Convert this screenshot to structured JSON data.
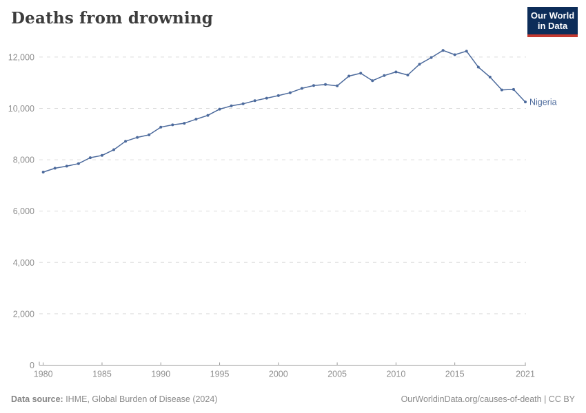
{
  "header": {
    "title": "Deaths from drowning"
  },
  "logo": {
    "line1": "Our World",
    "line2": "in Data",
    "bg_color": "#0d2d59",
    "accent_color": "#c4392f"
  },
  "chart_data": {
    "type": "line",
    "title": "Deaths from drowning",
    "entity_label": "Nigeria",
    "line_color": "#4C6A9C",
    "grid": "horizontal dashed",
    "legend_position": "end-of-line label",
    "xlabel": "",
    "ylabel": "",
    "ylim": [
      0,
      12000
    ],
    "yticks": [
      0,
      2000,
      4000,
      6000,
      8000,
      10000,
      12000
    ],
    "xticks": [
      1980,
      1985,
      1990,
      1995,
      2000,
      2005,
      2010,
      2015,
      2021
    ],
    "x": [
      1980,
      1981,
      1982,
      1983,
      1984,
      1985,
      1986,
      1987,
      1988,
      1989,
      1990,
      1991,
      1992,
      1993,
      1994,
      1995,
      1996,
      1997,
      1998,
      1999,
      2000,
      2001,
      2002,
      2003,
      2004,
      2005,
      2006,
      2007,
      2008,
      2009,
      2010,
      2011,
      2012,
      2013,
      2014,
      2015,
      2016,
      2017,
      2018,
      2019,
      2020,
      2021
    ],
    "series": [
      {
        "name": "Nigeria",
        "values": [
          7520,
          7670,
          7750,
          7850,
          8080,
          8170,
          8390,
          8720,
          8870,
          8970,
          9270,
          9360,
          9420,
          9580,
          9730,
          9970,
          10100,
          10180,
          10300,
          10400,
          10500,
          10610,
          10780,
          10890,
          10930,
          10880,
          11260,
          11370,
          11080,
          11280,
          11420,
          11300,
          11720,
          11980,
          12260,
          12090,
          12230,
          11610,
          11220,
          10720,
          10740,
          10250
        ]
      }
    ],
    "axis_color": "#9a9a9a",
    "tick_label_color": "#8e8e8e",
    "gridline_color": "#dcdcdc"
  },
  "footer": {
    "source_label": "Data source:",
    "source_text": " IHME, Global Burden of Disease (2024)",
    "link_text": "OurWorldinData.org/causes-of-death | CC BY"
  }
}
